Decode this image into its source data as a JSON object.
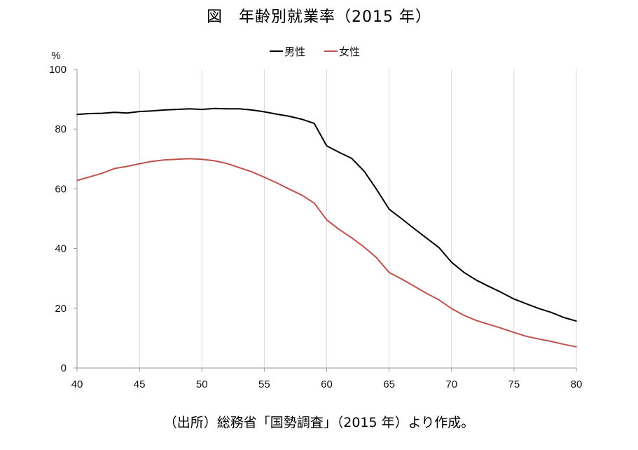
{
  "title": "図　年齢別就業率（2015 年）",
  "source": "（出所）総務省「国勢調査」（2015 年）より作成。",
  "chart_data": {
    "type": "line",
    "ylabel": "%",
    "xlim": [
      40,
      80
    ],
    "ylim": [
      0,
      100
    ],
    "x_ticks": [
      40,
      45,
      50,
      55,
      60,
      65,
      70,
      75,
      80
    ],
    "y_ticks": [
      0,
      20,
      40,
      60,
      80,
      100
    ],
    "grid": "vertical",
    "legend_position": "top-center",
    "x": [
      40,
      41,
      42,
      43,
      44,
      45,
      46,
      47,
      48,
      49,
      50,
      51,
      52,
      53,
      54,
      55,
      56,
      57,
      58,
      59,
      60,
      61,
      62,
      63,
      64,
      65,
      66,
      67,
      68,
      69,
      70,
      71,
      72,
      73,
      74,
      75,
      76,
      77,
      78,
      79,
      80
    ],
    "series": [
      {
        "name": "男性",
        "color": "#000000",
        "values": [
          84.9,
          85.2,
          85.3,
          85.6,
          85.4,
          85.9,
          86.1,
          86.4,
          86.6,
          86.8,
          86.6,
          86.9,
          86.8,
          86.8,
          86.4,
          85.8,
          85.0,
          84.3,
          83.3,
          81.9,
          74.4,
          72.2,
          70.2,
          65.9,
          59.8,
          53.2,
          50.0,
          46.7,
          43.5,
          40.3,
          35.4,
          32.0,
          29.4,
          27.3,
          25.3,
          23.1,
          21.5,
          19.9,
          18.6,
          16.9,
          15.7
        ]
      },
      {
        "name": "女性",
        "color": "#c0504d",
        "values": [
          62.8,
          64.0,
          65.2,
          66.8,
          67.5,
          68.4,
          69.2,
          69.7,
          69.9,
          70.1,
          69.9,
          69.4,
          68.5,
          67.1,
          65.7,
          63.9,
          62.0,
          59.9,
          57.9,
          55.2,
          49.6,
          46.4,
          43.6,
          40.5,
          36.9,
          32.0,
          29.8,
          27.4,
          25.0,
          22.8,
          19.9,
          17.6,
          15.9,
          14.6,
          13.3,
          11.9,
          10.6,
          9.7,
          8.9,
          7.9,
          7.1
        ]
      }
    ]
  }
}
